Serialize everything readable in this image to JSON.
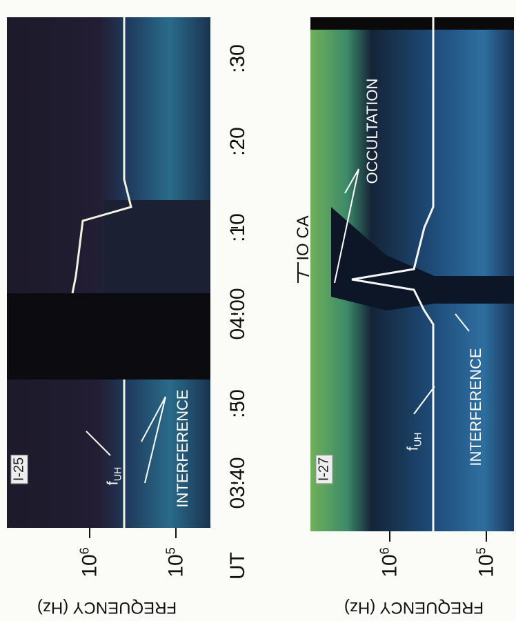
{
  "figure": {
    "freq_axis_label": "FREQUENCY (Hz)",
    "time_axis_label": "UT",
    "time_ticks": [
      ":30",
      ":20",
      ":10",
      "04:00",
      ":50",
      "03:40"
    ],
    "io_ca": "IO CA",
    "panels": [
      {
        "label": "I-25",
        "freq_ticks": [
          {
            "base": "10",
            "exp": "6"
          },
          {
            "base": "10",
            "exp": "5"
          }
        ],
        "f_base": "f",
        "f_sub": "UH",
        "interference": "INTERFERENCE"
      },
      {
        "label": "I-27",
        "freq_ticks": [
          {
            "base": "10",
            "exp": "6"
          },
          {
            "base": "10",
            "exp": "5"
          }
        ],
        "f_base": "f",
        "f_sub": "UH",
        "interference": "INTERFERENCE",
        "occultation": "OCCULTATION"
      }
    ]
  }
}
